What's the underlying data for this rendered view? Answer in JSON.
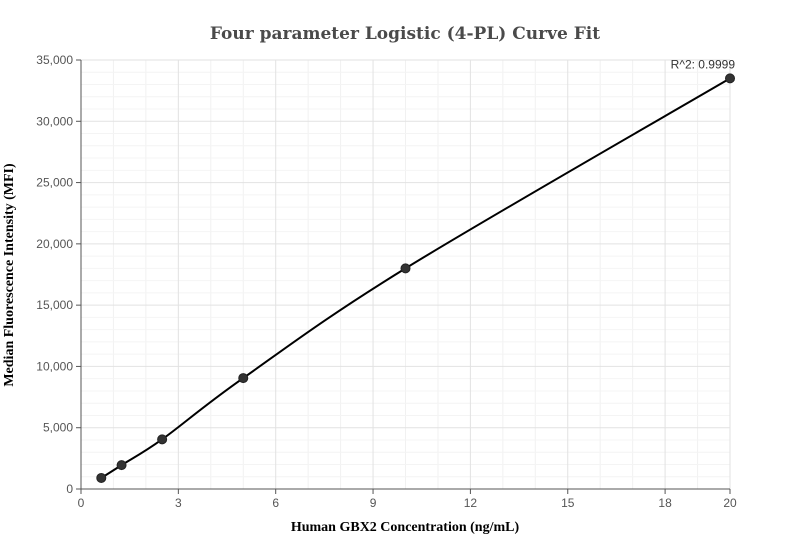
{
  "chart_data": {
    "type": "scatter",
    "title": "Four parameter Logistic (4-PL) Curve Fit",
    "xlabel": "Human GBX2 Concentration  (ng/mL)",
    "ylabel": "Median Fluorescence Intensity (MFI)",
    "xlim": [
      0,
      20
    ],
    "ylim": [
      0,
      35000
    ],
    "x_ticks": [
      0,
      3,
      6,
      9,
      12,
      15,
      18,
      20
    ],
    "y_ticks": [
      0,
      5000,
      10000,
      15000,
      20000,
      25000,
      30000,
      35000
    ],
    "x_tick_labels": [
      "0",
      "3",
      "6",
      "9",
      "12",
      "15",
      "18",
      "20"
    ],
    "y_tick_labels": [
      "0",
      "5,000",
      "10,000",
      "15,000",
      "20,000",
      "25,000",
      "30,000",
      "35,000"
    ],
    "grid": true,
    "series": [
      {
        "points": [
          {
            "x": 0.625,
            "y": 900
          },
          {
            "x": 1.25,
            "y": 1950
          },
          {
            "x": 2.5,
            "y": 4050
          },
          {
            "x": 5,
            "y": 9050
          },
          {
            "x": 10,
            "y": 18000
          },
          {
            "x": 20,
            "y": 33500
          }
        ],
        "marker_color": "#333333",
        "line_color": "#000000"
      }
    ],
    "annotations": [
      {
        "text": "R^2: 0.9999",
        "x": 20,
        "y": 33500
      }
    ]
  }
}
